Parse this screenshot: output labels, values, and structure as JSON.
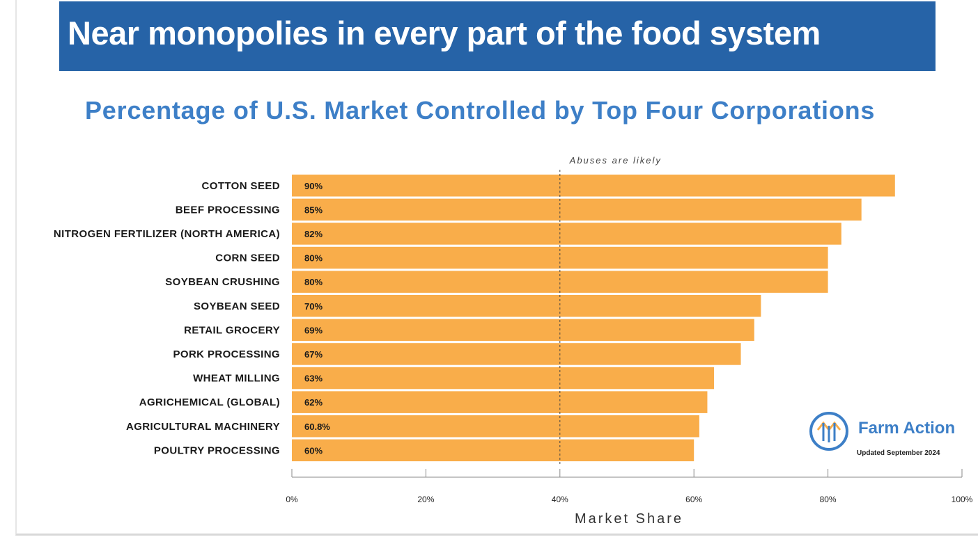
{
  "banner": {
    "title": "Near monopolies in every part of the food system"
  },
  "brand": {
    "name": "Farm Action",
    "updated": "Updated September 2024"
  },
  "colors": {
    "banner": "#2663a7",
    "subtitle": "#3d7fc7",
    "bar": "#f9ad4a",
    "brand": "#3d7fc7"
  },
  "chart_data": {
    "type": "bar",
    "orientation": "horizontal",
    "title": "Percentage of U.S. Market Controlled by Top Four Corporations",
    "xlabel": "Market Share",
    "ylabel": "",
    "xlim": [
      0,
      100
    ],
    "ticks": [
      0,
      20,
      40,
      60,
      80,
      100
    ],
    "tick_labels": [
      "0%",
      "20%",
      "40%",
      "60%",
      "80%",
      "100%"
    ],
    "categories": [
      "COTTON SEED",
      "BEEF PROCESSING",
      "NITROGEN FERTILIZER (NORTH AMERICA)",
      "CORN SEED",
      "SOYBEAN CRUSHING",
      "SOYBEAN SEED",
      "RETAIL GROCERY",
      "PORK PROCESSING",
      "WHEAT MILLING",
      "AGRICHEMICAL (GLOBAL)",
      "AGRICULTURAL MACHINERY",
      "POULTRY PROCESSING"
    ],
    "values": [
      90,
      85,
      82,
      80,
      80,
      70,
      69,
      67,
      63,
      62,
      60.8,
      60
    ],
    "value_labels": [
      "90%",
      "85%",
      "82%",
      "80%",
      "80%",
      "70%",
      "69%",
      "67%",
      "63%",
      "62%",
      "60.8%",
      "60%"
    ],
    "annotation": {
      "text": "Abuses are likely",
      "x": 40
    }
  }
}
